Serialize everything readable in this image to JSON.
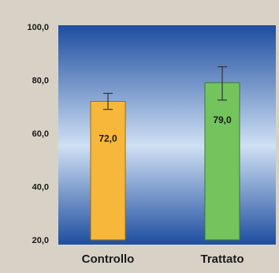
{
  "chart_data": {
    "type": "bar",
    "title": "",
    "xlabel": "",
    "ylabel": "",
    "ylim": [
      20,
      100
    ],
    "y_ticks": [
      "20,0",
      "40,0",
      "60,0",
      "80,0",
      "100,0"
    ],
    "y_tick_values": [
      20,
      40,
      60,
      80,
      100
    ],
    "categories": [
      "Controllo",
      "Trattato"
    ],
    "values": [
      72.0,
      79.0
    ],
    "value_labels": [
      "72,0",
      "79,0"
    ],
    "error": [
      {
        "low": 69.0,
        "high": 75.0
      },
      {
        "low": 72.5,
        "high": 85.0
      }
    ],
    "colors": {
      "bars": [
        "#f6b73a",
        "#74c45e"
      ],
      "bar_outline": [
        "#9a6e14",
        "#3b7a2b"
      ],
      "plot_top": "#1e4ea0",
      "plot_mid": "#cfe0f4",
      "plot_bottom": "#1e4ea0",
      "page_background": "#d8d2c6",
      "text": "#1a1a1a"
    },
    "grid": false,
    "legend": "none"
  }
}
